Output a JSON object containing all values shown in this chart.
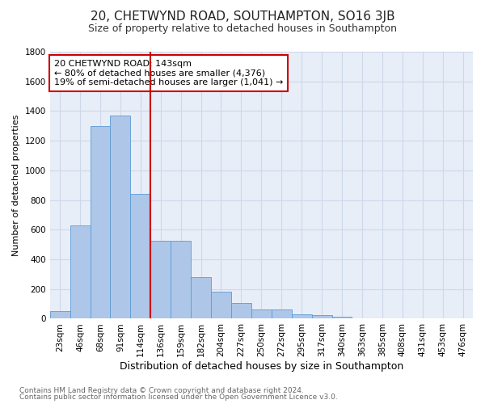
{
  "title": "20, CHETWYND ROAD, SOUTHAMPTON, SO16 3JB",
  "subtitle": "Size of property relative to detached houses in Southampton",
  "xlabel": "Distribution of detached houses by size in Southampton",
  "ylabel": "Number of detached properties",
  "footer_line1": "Contains HM Land Registry data © Crown copyright and database right 2024.",
  "footer_line2": "Contains public sector information licensed under the Open Government Licence v3.0.",
  "bar_values": [
    50,
    630,
    1300,
    1370,
    840,
    525,
    525,
    280,
    180,
    105,
    65,
    65,
    30,
    25,
    15,
    5,
    5,
    2,
    0,
    0,
    0
  ],
  "bar_labels": [
    "23sqm",
    "46sqm",
    "68sqm",
    "91sqm",
    "114sqm",
    "136sqm",
    "159sqm",
    "182sqm",
    "204sqm",
    "227sqm",
    "250sqm",
    "272sqm",
    "295sqm",
    "317sqm",
    "340sqm",
    "363sqm",
    "385sqm",
    "408sqm",
    "431sqm",
    "453sqm",
    "476sqm"
  ],
  "bar_color": "#aec6e8",
  "bar_edge_color": "#5b9bd5",
  "vline_color": "#cc0000",
  "vline_x_index": 4.5,
  "annotation_text": "20 CHETWYND ROAD: 143sqm\n← 80% of detached houses are smaller (4,376)\n19% of semi-detached houses are larger (1,041) →",
  "annotation_box_color": "#cc0000",
  "annotation_bg_color": "#ffffff",
  "ylim": [
    0,
    1800
  ],
  "grid_color": "#cdd8ea",
  "bg_color": "#e8eef8",
  "title_fontsize": 11,
  "subtitle_fontsize": 9,
  "ylabel_fontsize": 8,
  "xlabel_fontsize": 9,
  "tick_fontsize": 7.5,
  "footer_fontsize": 6.5
}
